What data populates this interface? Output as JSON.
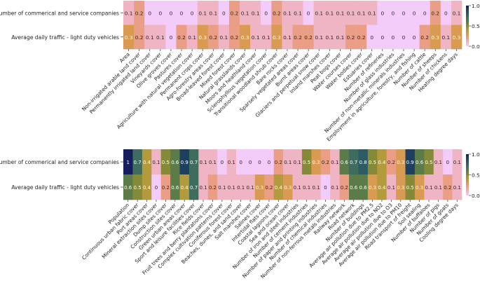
{
  "chart_data": [
    {
      "type": "heatmap",
      "rows": [
        "Number of commerical and service companies",
        "Average daily traffic - light duty vehicles"
      ],
      "columns": [
        "Area",
        "Non-irrigated arable land cover",
        "Permanently irrigated land cover",
        "Vineyards cover",
        "Olive groves cover",
        "Pastures cover",
        "Agriculture with natural vegetation cover",
        "Permanent crops cover",
        "Agro-forestry areas cover",
        "Broad-leaved forest cover",
        "Mixed forest cover",
        "Natural grasslands cover",
        "Moors and heathland cover",
        "Sclerophyllous vegetation cover",
        "Transitional woodland shrub cover",
        "Bare rocks cover",
        "Sparsely vegetated areas cover",
        "Burnt areas cover",
        "Glaciers and perpetual snow cover",
        "Inland marshes cover",
        "Peat bogs cover",
        "Water courses cover",
        "Water bodies cover",
        "Estuaries cover",
        "Number of refineries",
        "Number of glass industries",
        "Number of non-metallic minerals industries",
        "Employment in agriculture, forestry, and fishing",
        "Number of cattle",
        "Number of sheeps",
        "Number of chickens",
        "Heating degree days"
      ],
      "values": [
        [
          0.1,
          0.2,
          0,
          0,
          0,
          0,
          0,
          0.1,
          0.1,
          0,
          0.2,
          0.1,
          0.1,
          0,
          0.2,
          0.1,
          0.1,
          0,
          0.1,
          0.1,
          0.1,
          0.1,
          0.1,
          0.1,
          0,
          0,
          0,
          0,
          0,
          0.2,
          0,
          0.1
        ],
        [
          0.3,
          0.2,
          0.1,
          0.1,
          0,
          0.2,
          0.1,
          0.3,
          0.2,
          0.1,
          0.2,
          0.3,
          0.1,
          0.1,
          0.3,
          0.1,
          0.2,
          0.2,
          0.1,
          0.1,
          0.1,
          0.2,
          0.2,
          0,
          0,
          0,
          0,
          0,
          0.2,
          0.3,
          0.1,
          0.3
        ]
      ],
      "colorbar": {
        "range": [
          0,
          1
        ],
        "ticks": [
          "0.0",
          "0.5",
          "1.0"
        ]
      },
      "colormap": [
        "#f3ccfa",
        "#f0b5c4",
        "#eb9e86",
        "#d99a52",
        "#b39a3d",
        "#848a38",
        "#5b7b48",
        "#3e6c5e",
        "#2c5b64",
        "#1f3f5f",
        "#161d5d"
      ]
    },
    {
      "type": "heatmap",
      "rows": [
        "Number of commerical and service companies",
        "Average daily traffic - light duty vehicles"
      ],
      "columns": [
        "Population",
        "Continuous urban fabric cover",
        "Port areas cover",
        "Mineral extraction sites cover",
        "Dump sites cover",
        "Construction sites cover",
        "Green urban areas cover",
        "Sport and leisure facilities cover",
        "Rice fields cover",
        "Fruit trees and berry plantations cover",
        "Complex cultivation patterns cover",
        "Coniferous forest cover",
        "Beaches, dunes, and sand cover",
        "Salt marshes cover",
        "Salines cover",
        "Intertidal flats cover",
        "Coastal lagoons cover",
        "Sea and ocean cover",
        "Number of iron and steel industries",
        "Number of cement industries",
        "Number of paper and printing industries",
        "Number of chemical industries",
        "Number of non-ferrous metals industries",
        "Railway network",
        "Road network",
        "Number of buildings",
        "Average air pollution due to PM2.5",
        "Average air pollution due to NO2",
        "Average air pollution due to O3",
        "Average air pollution due to PM10",
        "Road transport of freight",
        "Soil sealing",
        "Number of buffaloes",
        "Number of pigs",
        "Number of goats",
        "Cooling degree days"
      ],
      "values": [
        [
          1,
          0.7,
          0.4,
          0.1,
          0.5,
          0.6,
          0.9,
          0.7,
          0.1,
          0.1,
          0,
          0.1,
          0,
          0,
          0,
          0,
          0.2,
          0.1,
          0.1,
          0.5,
          0.3,
          0.2,
          0.1,
          0.6,
          0.7,
          0.8,
          0.5,
          0.4,
          0.2,
          0.3,
          0.9,
          0.6,
          0.5,
          0.1,
          0,
          0.1
        ],
        [
          0.6,
          0.5,
          0.4,
          0,
          0.2,
          0.6,
          0.4,
          0.7,
          0.1,
          0.2,
          0.1,
          0.1,
          0.1,
          0.1,
          0.3,
          0.2,
          0.4,
          0.3,
          0.1,
          0.1,
          0.1,
          0,
          0.1,
          0.2,
          0.6,
          0.6,
          0.3,
          0.4,
          0.1,
          0.3,
          0.5,
          0.3,
          0.1,
          0.1,
          0.2,
          0.1
        ]
      ],
      "colorbar": {
        "range": [
          0,
          1
        ],
        "ticks": [
          "0.0",
          "0.5",
          "1.0"
        ]
      },
      "colormap": [
        "#f3ccfa",
        "#f0b5c4",
        "#eb9e86",
        "#d99a52",
        "#b39a3d",
        "#848a38",
        "#5b7b48",
        "#3e6c5e",
        "#2c5b64",
        "#1f3f5f",
        "#161d5d"
      ]
    }
  ]
}
